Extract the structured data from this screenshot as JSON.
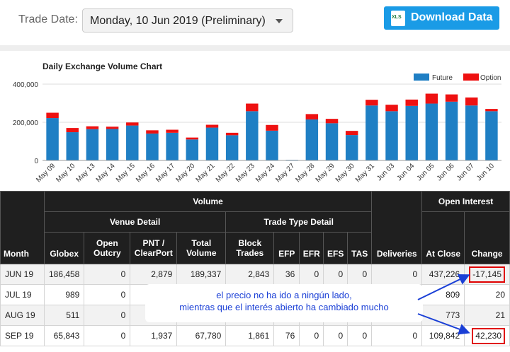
{
  "header": {
    "trade_date_label": "Trade Date:",
    "trade_date_value": "Monday, 10 Jun 2019 (Preliminary)",
    "download_icon_text": "XLS",
    "download_label": "Download Data"
  },
  "colors": {
    "future": "#1f7fc4",
    "option": "#ee1111",
    "button": "#1a9be6",
    "annotation": "#1a3fd6",
    "highlight": "#e00000"
  },
  "chart_data": {
    "type": "bar",
    "title": "Daily Exchange Volume Chart",
    "stacked": true,
    "legend_position": "top-right",
    "grid": true,
    "ylim": [
      0,
      400000
    ],
    "yticks": [
      "0",
      "200,000",
      "400,000"
    ],
    "categories": [
      "May 09",
      "May 10",
      "May 13",
      "May 14",
      "May 15",
      "May 16",
      "May 17",
      "May 20",
      "May 21",
      "May 22",
      "May 23",
      "May 24",
      "May 27",
      "May 28",
      "May 29",
      "May 30",
      "May 31",
      "Jun 03",
      "Jun 04",
      "Jun 05",
      "Jun 06",
      "Jun 07",
      "Jun 10"
    ],
    "series": [
      {
        "name": "Future",
        "values": [
          222000,
          148000,
          164000,
          165000,
          183000,
          141000,
          145000,
          110000,
          172000,
          132000,
          258000,
          156000,
          3000,
          215000,
          195000,
          133000,
          288000,
          258000,
          286000,
          298000,
          308000,
          288000,
          258000
        ]
      },
      {
        "name": "Option",
        "values": [
          28000,
          22000,
          15000,
          12000,
          16000,
          17000,
          16000,
          10000,
          15000,
          13000,
          40000,
          30000,
          0,
          28000,
          23000,
          22000,
          30000,
          34000,
          33000,
          52000,
          38000,
          42000,
          12000
        ]
      }
    ]
  },
  "table": {
    "group_volume": "Volume",
    "group_venue": "Venue Detail",
    "group_trade_type": "Trade Type Detail",
    "group_open_interest": "Open Interest",
    "col_month": "Month",
    "col_globex": "Globex",
    "col_open_outcry_1": "Open",
    "col_open_outcry_2": "Outcry",
    "col_pnt_1": "PNT /",
    "col_pnt_2": "ClearPort",
    "col_total_1": "Total",
    "col_total_2": "Volume",
    "col_block_1": "Block",
    "col_block_2": "Trades",
    "col_efp": "EFP",
    "col_efr": "EFR",
    "col_efs": "EFS",
    "col_tas": "TAS",
    "col_deliveries": "Deliveries",
    "col_at_close": "At Close",
    "col_change": "Change",
    "rows": [
      {
        "month": "JUN 19",
        "globex": "186,458",
        "open_outcry": "0",
        "pnt": "2,879",
        "total": "189,337",
        "block": "2,843",
        "efp": "36",
        "efr": "0",
        "efs": "0",
        "tas": "0",
        "deliveries": "0",
        "at_close": "437,226",
        "change": "-17,145"
      },
      {
        "month": "JUL 19",
        "globex": "989",
        "open_outcry": "0",
        "at_close": "809",
        "change": "20"
      },
      {
        "month": "AUG 19",
        "globex": "511",
        "open_outcry": "0",
        "at_close": "773",
        "change": "21"
      },
      {
        "month": "SEP 19",
        "globex": "65,843",
        "open_outcry": "0",
        "pnt": "1,937",
        "total": "67,780",
        "block": "1,861",
        "efp": "76",
        "efr": "0",
        "efs": "0",
        "tas": "0",
        "deliveries": "0",
        "at_close": "109,842",
        "change": "42,230"
      }
    ]
  },
  "annotation": {
    "line1": "el precio no ha ido a ningún lado,",
    "line2": "mientras que el interés abierto ha cambiado mucho"
  }
}
